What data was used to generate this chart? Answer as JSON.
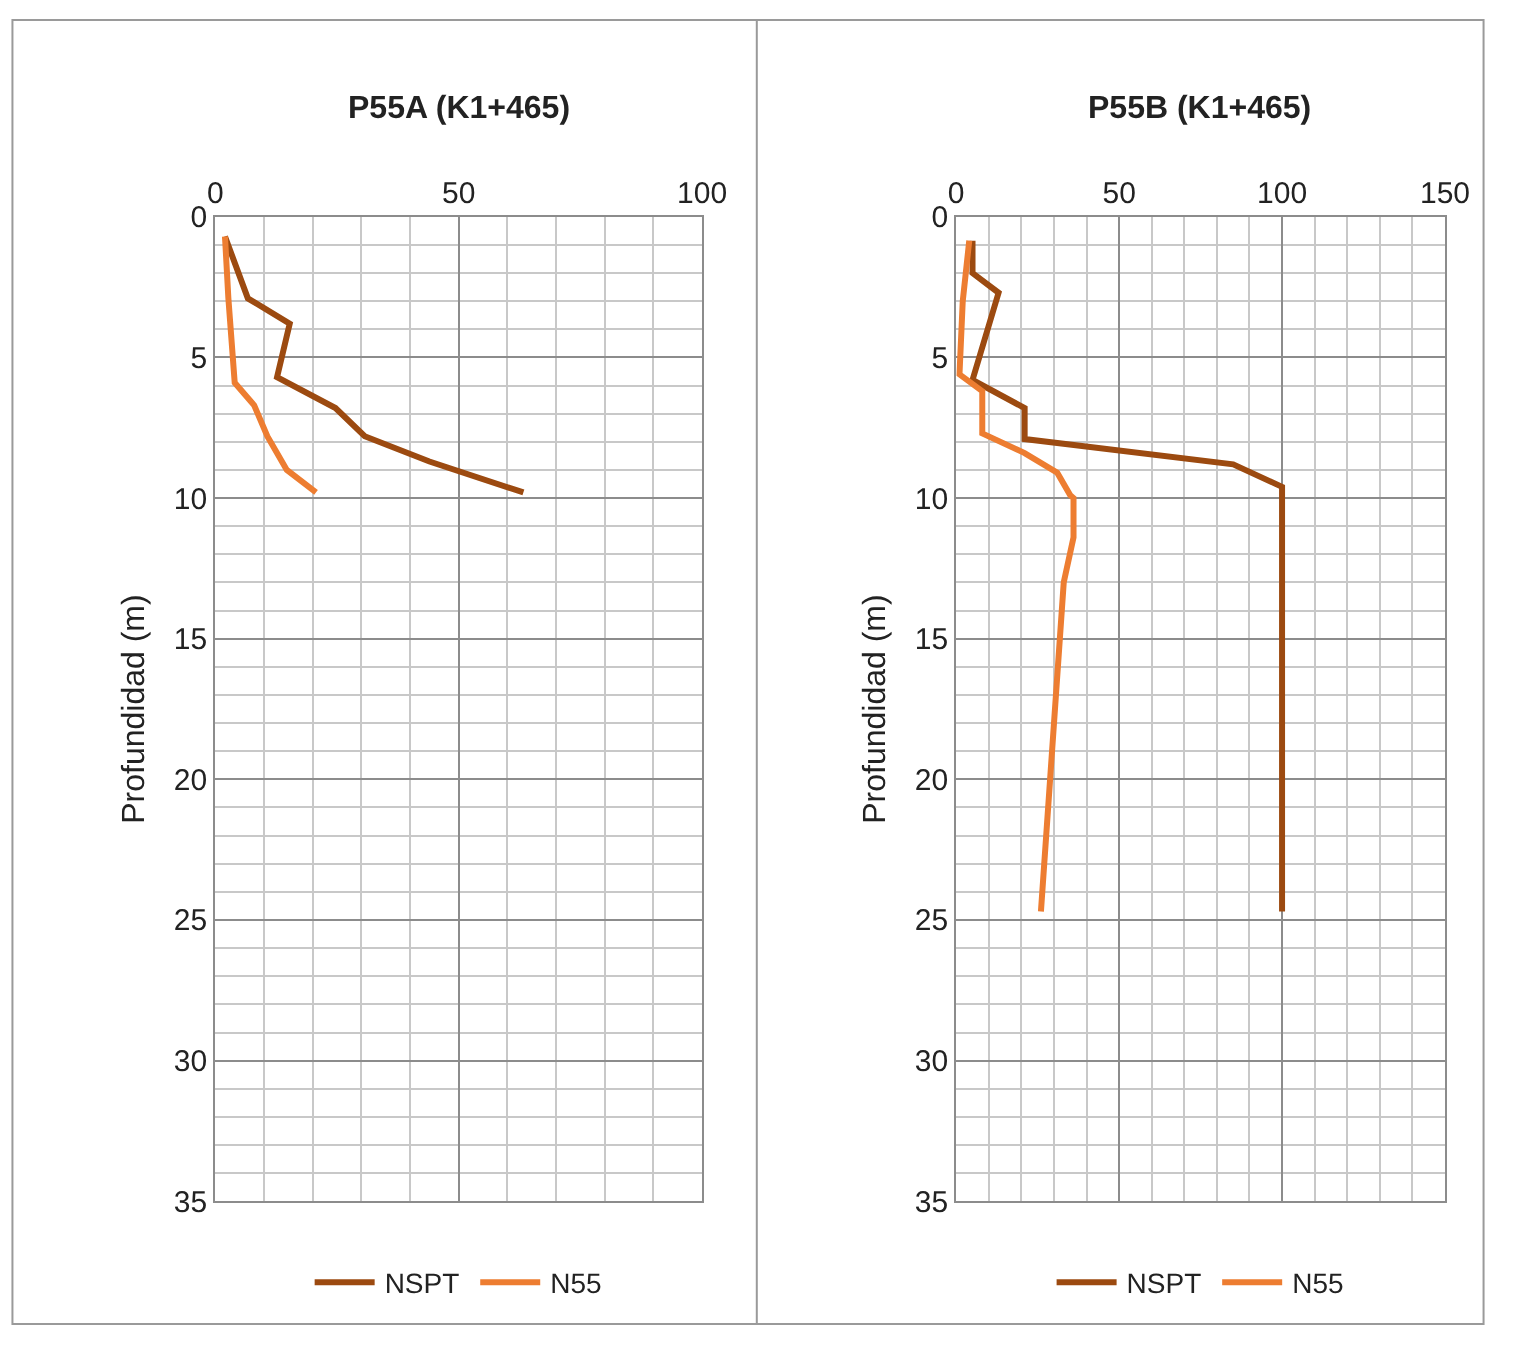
{
  "chart_data": [
    {
      "type": "line",
      "title": "P55A (K1+465)",
      "ylabel": "Profundidad (m)",
      "xlim": [
        0,
        100
      ],
      "xticks": [
        0,
        50,
        100
      ],
      "ylim": [
        35,
        0
      ],
      "yticks": [
        0,
        5,
        10,
        15,
        20,
        25,
        30,
        35
      ],
      "grid": true,
      "legend": "bottom",
      "marker": "none",
      "line_style": "solid",
      "series": [
        {
          "name": "NSPT",
          "color": "#9c4a10",
          "x": [
            2,
            6.7,
            15.3,
            12.7,
            24.7,
            30.7,
            44,
            63.3
          ],
          "values": [
            0.7,
            2.9,
            3.8,
            5.7,
            6.8,
            7.8,
            8.7,
            9.8
          ]
        },
        {
          "name": "N55",
          "color": "#ed7d31",
          "x": [
            2,
            2.7,
            4,
            8,
            10.7,
            14.7,
            20.7
          ],
          "values": [
            0.7,
            2.9,
            5.9,
            6.7,
            7.8,
            9.0,
            9.8
          ]
        }
      ]
    },
    {
      "type": "line",
      "title": "P55B (K1+465)",
      "ylabel": "Profundidad (m)",
      "xlim": [
        0,
        150
      ],
      "xticks": [
        0,
        50,
        100,
        150
      ],
      "ylim": [
        35,
        0
      ],
      "yticks": [
        0,
        5,
        10,
        15,
        20,
        25,
        30,
        35
      ],
      "grid": true,
      "legend": "bottom",
      "marker": "none",
      "line_style": "solid",
      "series": [
        {
          "name": "NSPT",
          "color": "#9c4a10",
          "x": [
            5,
            5,
            13,
            5,
            21,
            21,
            85,
            100,
            100
          ],
          "values": [
            0.85,
            2,
            2.7,
            5.8,
            6.8,
            7.9,
            8.8,
            9.6,
            24.7
          ]
        },
        {
          "name": "N55",
          "color": "#ed7d31",
          "x": [
            4,
            2,
            1,
            8,
            8,
            21,
            31,
            35,
            36,
            36,
            33,
            26
          ],
          "values": [
            0.85,
            3,
            5.6,
            6.2,
            7.7,
            8.4,
            9.1,
            9.9,
            10,
            11.4,
            13,
            24.7
          ]
        }
      ]
    }
  ]
}
